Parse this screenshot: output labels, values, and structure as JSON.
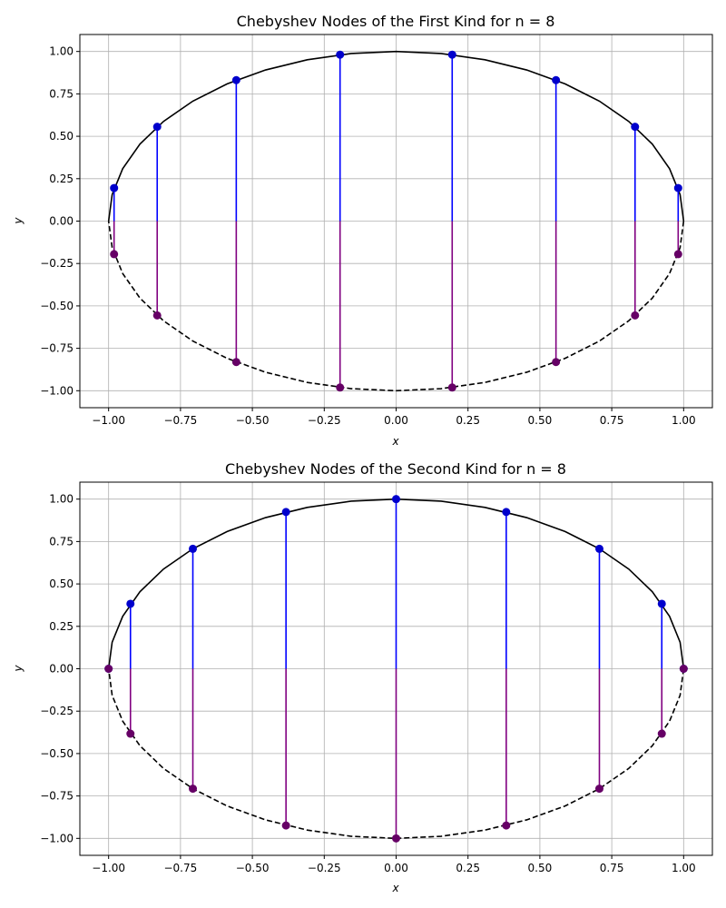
{
  "chart_data": [
    {
      "type": "line",
      "title": "Chebyshev Nodes of the First Kind for n = 8",
      "xlabel": "x",
      "ylabel": "y",
      "xlim": [
        -1.1,
        1.1
      ],
      "ylim": [
        -1.1,
        1.1
      ],
      "xticks": [
        "−1.00",
        "−0.75",
        "−0.50",
        "−0.25",
        "0.00",
        "0.25",
        "0.50",
        "0.75",
        "1.00"
      ],
      "yticks": [
        "−1.00",
        "−0.75",
        "−0.50",
        "−0.25",
        "0.00",
        "0.25",
        "0.50",
        "0.75",
        "1.00"
      ],
      "grid": true,
      "nodes_x": [
        -0.981,
        -0.831,
        -0.556,
        -0.195,
        0.195,
        0.556,
        0.831,
        0.981
      ],
      "upper_y": [
        0.195,
        0.556,
        0.831,
        0.981,
        0.981,
        0.831,
        0.556,
        0.195
      ],
      "lower_y": [
        -0.195,
        -0.556,
        -0.831,
        -0.981,
        -0.981,
        -0.831,
        -0.556,
        -0.195
      ],
      "colors": {
        "upper": "#0000cc",
        "lower": "#660066",
        "upper_stem": "#0000ff",
        "lower_stem": "#800080",
        "curve": "#000000",
        "grid": "#b0b0b0"
      }
    },
    {
      "type": "line",
      "title": "Chebyshev Nodes of the Second Kind for n = 8",
      "xlabel": "x",
      "ylabel": "y",
      "xlim": [
        -1.1,
        1.1
      ],
      "ylim": [
        -1.1,
        1.1
      ],
      "xticks": [
        "−1.00",
        "−0.75",
        "−0.50",
        "−0.25",
        "0.00",
        "0.25",
        "0.50",
        "0.75",
        "1.00"
      ],
      "yticks": [
        "−1.00",
        "−0.75",
        "−0.50",
        "−0.25",
        "0.00",
        "0.25",
        "0.50",
        "0.75",
        "1.00"
      ],
      "grid": true,
      "nodes_x": [
        -1.0,
        -0.924,
        -0.707,
        -0.383,
        0.0,
        0.383,
        0.707,
        0.924,
        1.0
      ],
      "upper_y": [
        0.0,
        0.383,
        0.707,
        0.924,
        1.0,
        0.924,
        0.707,
        0.383,
        0.0
      ],
      "lower_y": [
        0.0,
        -0.383,
        -0.707,
        -0.924,
        -1.0,
        -0.924,
        -0.707,
        -0.383,
        0.0
      ],
      "colors": {
        "upper": "#0000cc",
        "lower": "#660066",
        "upper_stem": "#0000ff",
        "lower_stem": "#800080",
        "curve": "#000000",
        "grid": "#b0b0b0"
      }
    }
  ]
}
